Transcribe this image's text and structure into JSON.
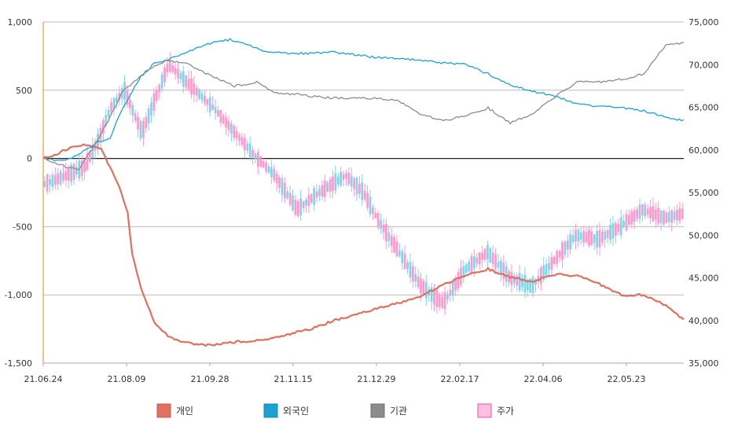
{
  "chart_data": {
    "type": "line",
    "title": "",
    "x_ticks": [
      "21.06.24",
      "21.08.09",
      "21.09.28",
      "21.11.15",
      "21.12.29",
      "22.02.17",
      "22.04.06",
      "22.05.23"
    ],
    "y_left": {
      "min": -1500,
      "max": 1000,
      "ticks": [
        1000,
        500,
        0,
        -500,
        -1000,
        -1500
      ],
      "tick_labels": [
        "1,000",
        "500",
        "0",
        "-500",
        "-1,000",
        "-1,500"
      ]
    },
    "y_right": {
      "min": 35000,
      "max": 75000,
      "ticks": [
        75000,
        70000,
        65000,
        60000,
        55000,
        50000,
        45000,
        40000,
        35000
      ],
      "tick_labels": [
        "75,000",
        "70,000",
        "65,000",
        "60,000",
        "55,000",
        "50,000",
        "45,000",
        "40,000",
        "35,000"
      ]
    },
    "grid": true,
    "legend_position": "bottom",
    "series": [
      {
        "name": "개인",
        "axis": "left",
        "color": "#E07060",
        "x": [
          0,
          3,
          6,
          9,
          13,
          17,
          19,
          20,
          22,
          25,
          28,
          31,
          34,
          38,
          42,
          45,
          50,
          55,
          60,
          62,
          65,
          70,
          75,
          80,
          85,
          90,
          95,
          100,
          105,
          110,
          115,
          120,
          125,
          130,
          135,
          140,
          144
        ],
        "values": [
          0,
          30,
          80,
          100,
          70,
          -200,
          -400,
          -700,
          -960,
          -1200,
          -1300,
          -1340,
          -1360,
          -1370,
          -1350,
          -1340,
          -1330,
          -1290,
          -1250,
          -1230,
          -1190,
          -1150,
          -1100,
          -1060,
          -1010,
          -920,
          -860,
          -810,
          -870,
          -900,
          -850,
          -860,
          -920,
          -1000,
          -1000,
          -1080,
          -1180
        ]
      },
      {
        "name": "외국인",
        "axis": "left",
        "color": "#1BA1D4",
        "x": [
          0,
          5,
          9,
          12,
          15,
          18,
          22,
          25,
          28,
          32,
          38,
          42,
          47,
          50,
          55,
          60,
          65,
          70,
          75,
          80,
          85,
          90,
          95,
          100,
          105,
          110,
          115,
          120,
          125,
          130,
          135,
          140,
          144
        ],
        "values": [
          0,
          -20,
          50,
          120,
          150,
          380,
          600,
          700,
          720,
          780,
          850,
          870,
          820,
          780,
          770,
          770,
          780,
          760,
          740,
          730,
          720,
          700,
          690,
          620,
          540,
          490,
          460,
          400,
          380,
          370,
          350,
          300,
          280
        ]
      },
      {
        "name": "기관",
        "axis": "left",
        "color": "#8C8C8C",
        "x": [
          0,
          5,
          8,
          12,
          15,
          18,
          22,
          25,
          28,
          32,
          38,
          43,
          48,
          52,
          57,
          62,
          68,
          75,
          80,
          85,
          90,
          95,
          100,
          105,
          110,
          115,
          120,
          125,
          130,
          135,
          140,
          144
        ],
        "values": [
          0,
          -60,
          -80,
          120,
          300,
          500,
          600,
          680,
          720,
          700,
          600,
          530,
          560,
          480,
          470,
          450,
          440,
          440,
          420,
          320,
          280,
          310,
          370,
          260,
          330,
          450,
          560,
          560,
          580,
          620,
          830,
          850
        ]
      },
      {
        "name": "주가",
        "axis": "right",
        "type": "candlestick",
        "color_up": "#FF99CC",
        "color_down": "#7FD4EE",
        "x": [
          0,
          5,
          9,
          12,
          15,
          18,
          22,
          25,
          28,
          32,
          38,
          43,
          48,
          52,
          57,
          62,
          68,
          72,
          75,
          80,
          85,
          90,
          95,
          100,
          105,
          110,
          115,
          120,
          125,
          130,
          135,
          140,
          144
        ],
        "close": [
          56000,
          57000,
          58000,
          61000,
          65000,
          67000,
          62000,
          66000,
          70000,
          68000,
          65000,
          62000,
          59000,
          57000,
          53000,
          55000,
          57000,
          55000,
          52000,
          48000,
          44000,
          42000,
          46000,
          48000,
          45000,
          44000,
          47000,
          50000,
          49500,
          51000,
          53000,
          52000,
          52500
        ]
      }
    ]
  },
  "legend": {
    "items": [
      {
        "label": "개인",
        "fill": "#E07060",
        "stroke": "#C85C4E"
      },
      {
        "label": "외국인",
        "fill": "#1BA1D4",
        "stroke": "#1787B3"
      },
      {
        "label": "기관",
        "fill": "#8C8C8C",
        "stroke": "#707070"
      },
      {
        "label": "주가",
        "fill": "#FFBFE2",
        "stroke": "#E0559E"
      }
    ]
  }
}
